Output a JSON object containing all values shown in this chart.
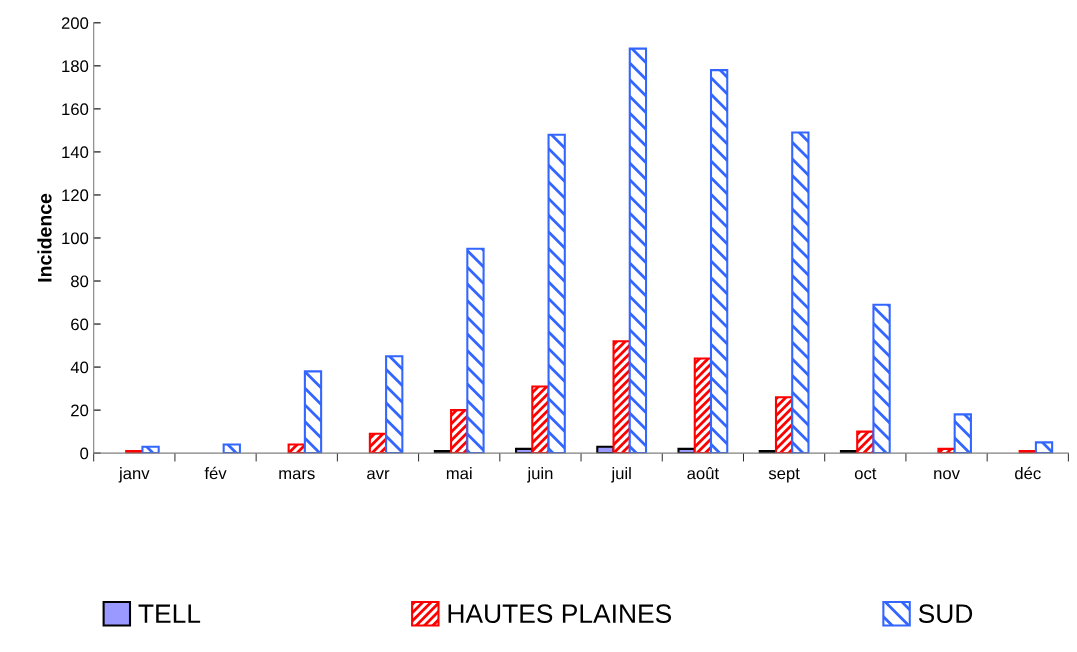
{
  "chart_data": {
    "type": "bar",
    "ylabel": "Incidence",
    "categories": [
      "janv",
      "fév",
      "mars",
      "avr",
      "mai",
      "juin",
      "juil",
      "août",
      "sept",
      "oct",
      "nov",
      "déc"
    ],
    "series": [
      {
        "name": "TELL",
        "color": "#9999ff",
        "values": [
          0,
          0,
          0,
          0,
          1,
          2,
          3,
          2,
          1,
          1,
          0,
          0
        ]
      },
      {
        "name": "HAUTES PLAINES",
        "color": "#ff0000",
        "values": [
          1,
          0,
          4,
          9,
          20,
          31,
          52,
          44,
          26,
          10,
          2,
          1
        ]
      },
      {
        "name": "SUD",
        "color": "#3366ff",
        "values": [
          3,
          4,
          38,
          45,
          95,
          148,
          188,
          178,
          149,
          69,
          18,
          5
        ]
      }
    ],
    "ylim": [
      0,
      200
    ],
    "yticks": [
      0,
      20,
      40,
      60,
      80,
      100,
      120,
      140,
      160,
      180,
      200
    ],
    "grid": false,
    "legend": "bottom"
  }
}
